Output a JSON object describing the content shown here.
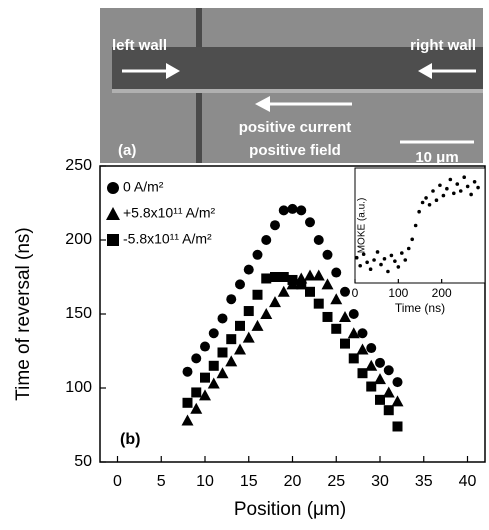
{
  "image_panel": {
    "panel_label": "(a)",
    "left_label": "left wall",
    "right_label": "right wall",
    "current_label": "positive current",
    "field_label": "positive field",
    "scale_label": "10 μm"
  },
  "chart_data": [
    {
      "type": "scatter",
      "panel_label": "(b)",
      "x_label": "Position (μm)",
      "y_label": "Time of reversal (ns)",
      "x": [
        8,
        9,
        10,
        11,
        12,
        13,
        14,
        15,
        16,
        17,
        18,
        19,
        20,
        21,
        22,
        23,
        24,
        25,
        26,
        27,
        28,
        29,
        30,
        31,
        32
      ],
      "series": [
        {
          "name": "0 A/m²",
          "marker": "circle",
          "color": "#000000",
          "values": [
            111,
            120,
            128,
            137,
            147,
            160,
            170,
            180,
            190,
            200,
            210,
            220,
            221,
            220,
            212,
            200,
            190,
            178,
            165,
            150,
            137,
            127,
            117,
            112,
            104
          ]
        },
        {
          "name": "+5.8x10¹¹ A/m²",
          "marker": "triangle",
          "color": "#000000",
          "values": [
            78,
            86,
            95,
            103,
            110,
            118,
            126,
            134,
            142,
            150,
            158,
            165,
            170,
            174,
            176,
            176,
            170,
            160,
            148,
            137,
            126,
            115,
            106,
            97,
            91
          ]
        },
        {
          "name": "-5.8x10¹¹ A/m²",
          "marker": "square",
          "color": "#000000",
          "values": [
            90,
            97,
            107,
            115,
            124,
            133,
            142,
            152,
            163,
            174,
            175,
            175,
            173,
            170,
            165,
            157,
            148,
            140,
            130,
            120,
            110,
            101,
            92,
            85,
            74
          ]
        }
      ],
      "xlim": [
        -2,
        42
      ],
      "xticks": [
        0,
        5,
        10,
        15,
        20,
        25,
        30,
        35,
        40
      ],
      "ylim": [
        50,
        250
      ],
      "yticks": [
        50,
        100,
        150,
        200,
        250
      ]
    },
    {
      "type": "scatter",
      "x_label": "Time (ns)",
      "y_label": "MOKE (a.u.)",
      "color": "#000000",
      "x": [
        4,
        12,
        20,
        28,
        36,
        44,
        52,
        60,
        68,
        76,
        84,
        92,
        100,
        108,
        116,
        124,
        132,
        140,
        148,
        156,
        164,
        172,
        180,
        188,
        196,
        204,
        212,
        220,
        228,
        236,
        244,
        252,
        260,
        268,
        276,
        284
      ],
      "values": [
        0.22,
        0.15,
        0.25,
        0.18,
        0.12,
        0.2,
        0.27,
        0.16,
        0.21,
        0.1,
        0.24,
        0.19,
        0.14,
        0.26,
        0.2,
        0.3,
        0.38,
        0.5,
        0.62,
        0.7,
        0.74,
        0.68,
        0.8,
        0.72,
        0.85,
        0.76,
        0.82,
        0.9,
        0.78,
        0.86,
        0.8,
        0.92,
        0.84,
        0.77,
        0.88,
        0.83
      ],
      "xlim": [
        0,
        300
      ],
      "xticks": [
        0,
        100,
        200
      ],
      "ylim": [
        0,
        1
      ]
    }
  ]
}
